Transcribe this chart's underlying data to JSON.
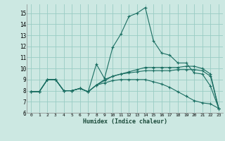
{
  "xlabel": "Humidex (Indice chaleur)",
  "bg_color": "#cce8e2",
  "grid_color": "#99ccc4",
  "line_color": "#1a6e62",
  "xlim": [
    -0.5,
    23.5
  ],
  "ylim": [
    6,
    15.8
  ],
  "xticks": [
    0,
    1,
    2,
    3,
    4,
    5,
    6,
    7,
    8,
    9,
    10,
    11,
    12,
    13,
    14,
    15,
    16,
    17,
    18,
    19,
    20,
    21,
    22,
    23
  ],
  "yticks": [
    6,
    7,
    8,
    9,
    10,
    11,
    12,
    13,
    14,
    15
  ],
  "series": [
    [
      7.9,
      7.9,
      9.0,
      9.0,
      8.0,
      8.0,
      8.2,
      7.9,
      10.4,
      9.1,
      11.9,
      13.1,
      14.7,
      15.0,
      15.5,
      12.5,
      11.4,
      11.2,
      10.5,
      10.5,
      9.6,
      9.5,
      8.4,
      6.4
    ],
    [
      7.9,
      7.9,
      9.0,
      9.0,
      8.0,
      8.0,
      8.2,
      7.9,
      8.5,
      8.9,
      9.3,
      9.5,
      9.7,
      9.9,
      10.1,
      10.1,
      10.1,
      10.1,
      10.1,
      10.2,
      10.2,
      10.0,
      9.5,
      6.4
    ],
    [
      7.9,
      7.9,
      9.0,
      9.0,
      8.0,
      8.0,
      8.2,
      7.9,
      8.5,
      9.0,
      9.3,
      9.5,
      9.6,
      9.7,
      9.8,
      9.8,
      9.8,
      9.8,
      9.9,
      9.9,
      9.9,
      9.8,
      9.3,
      6.4
    ],
    [
      7.9,
      7.9,
      9.0,
      9.0,
      8.0,
      8.0,
      8.2,
      7.9,
      8.5,
      8.7,
      8.9,
      9.0,
      9.0,
      9.0,
      9.0,
      8.8,
      8.6,
      8.3,
      7.9,
      7.5,
      7.1,
      6.9,
      6.8,
      6.4
    ]
  ]
}
